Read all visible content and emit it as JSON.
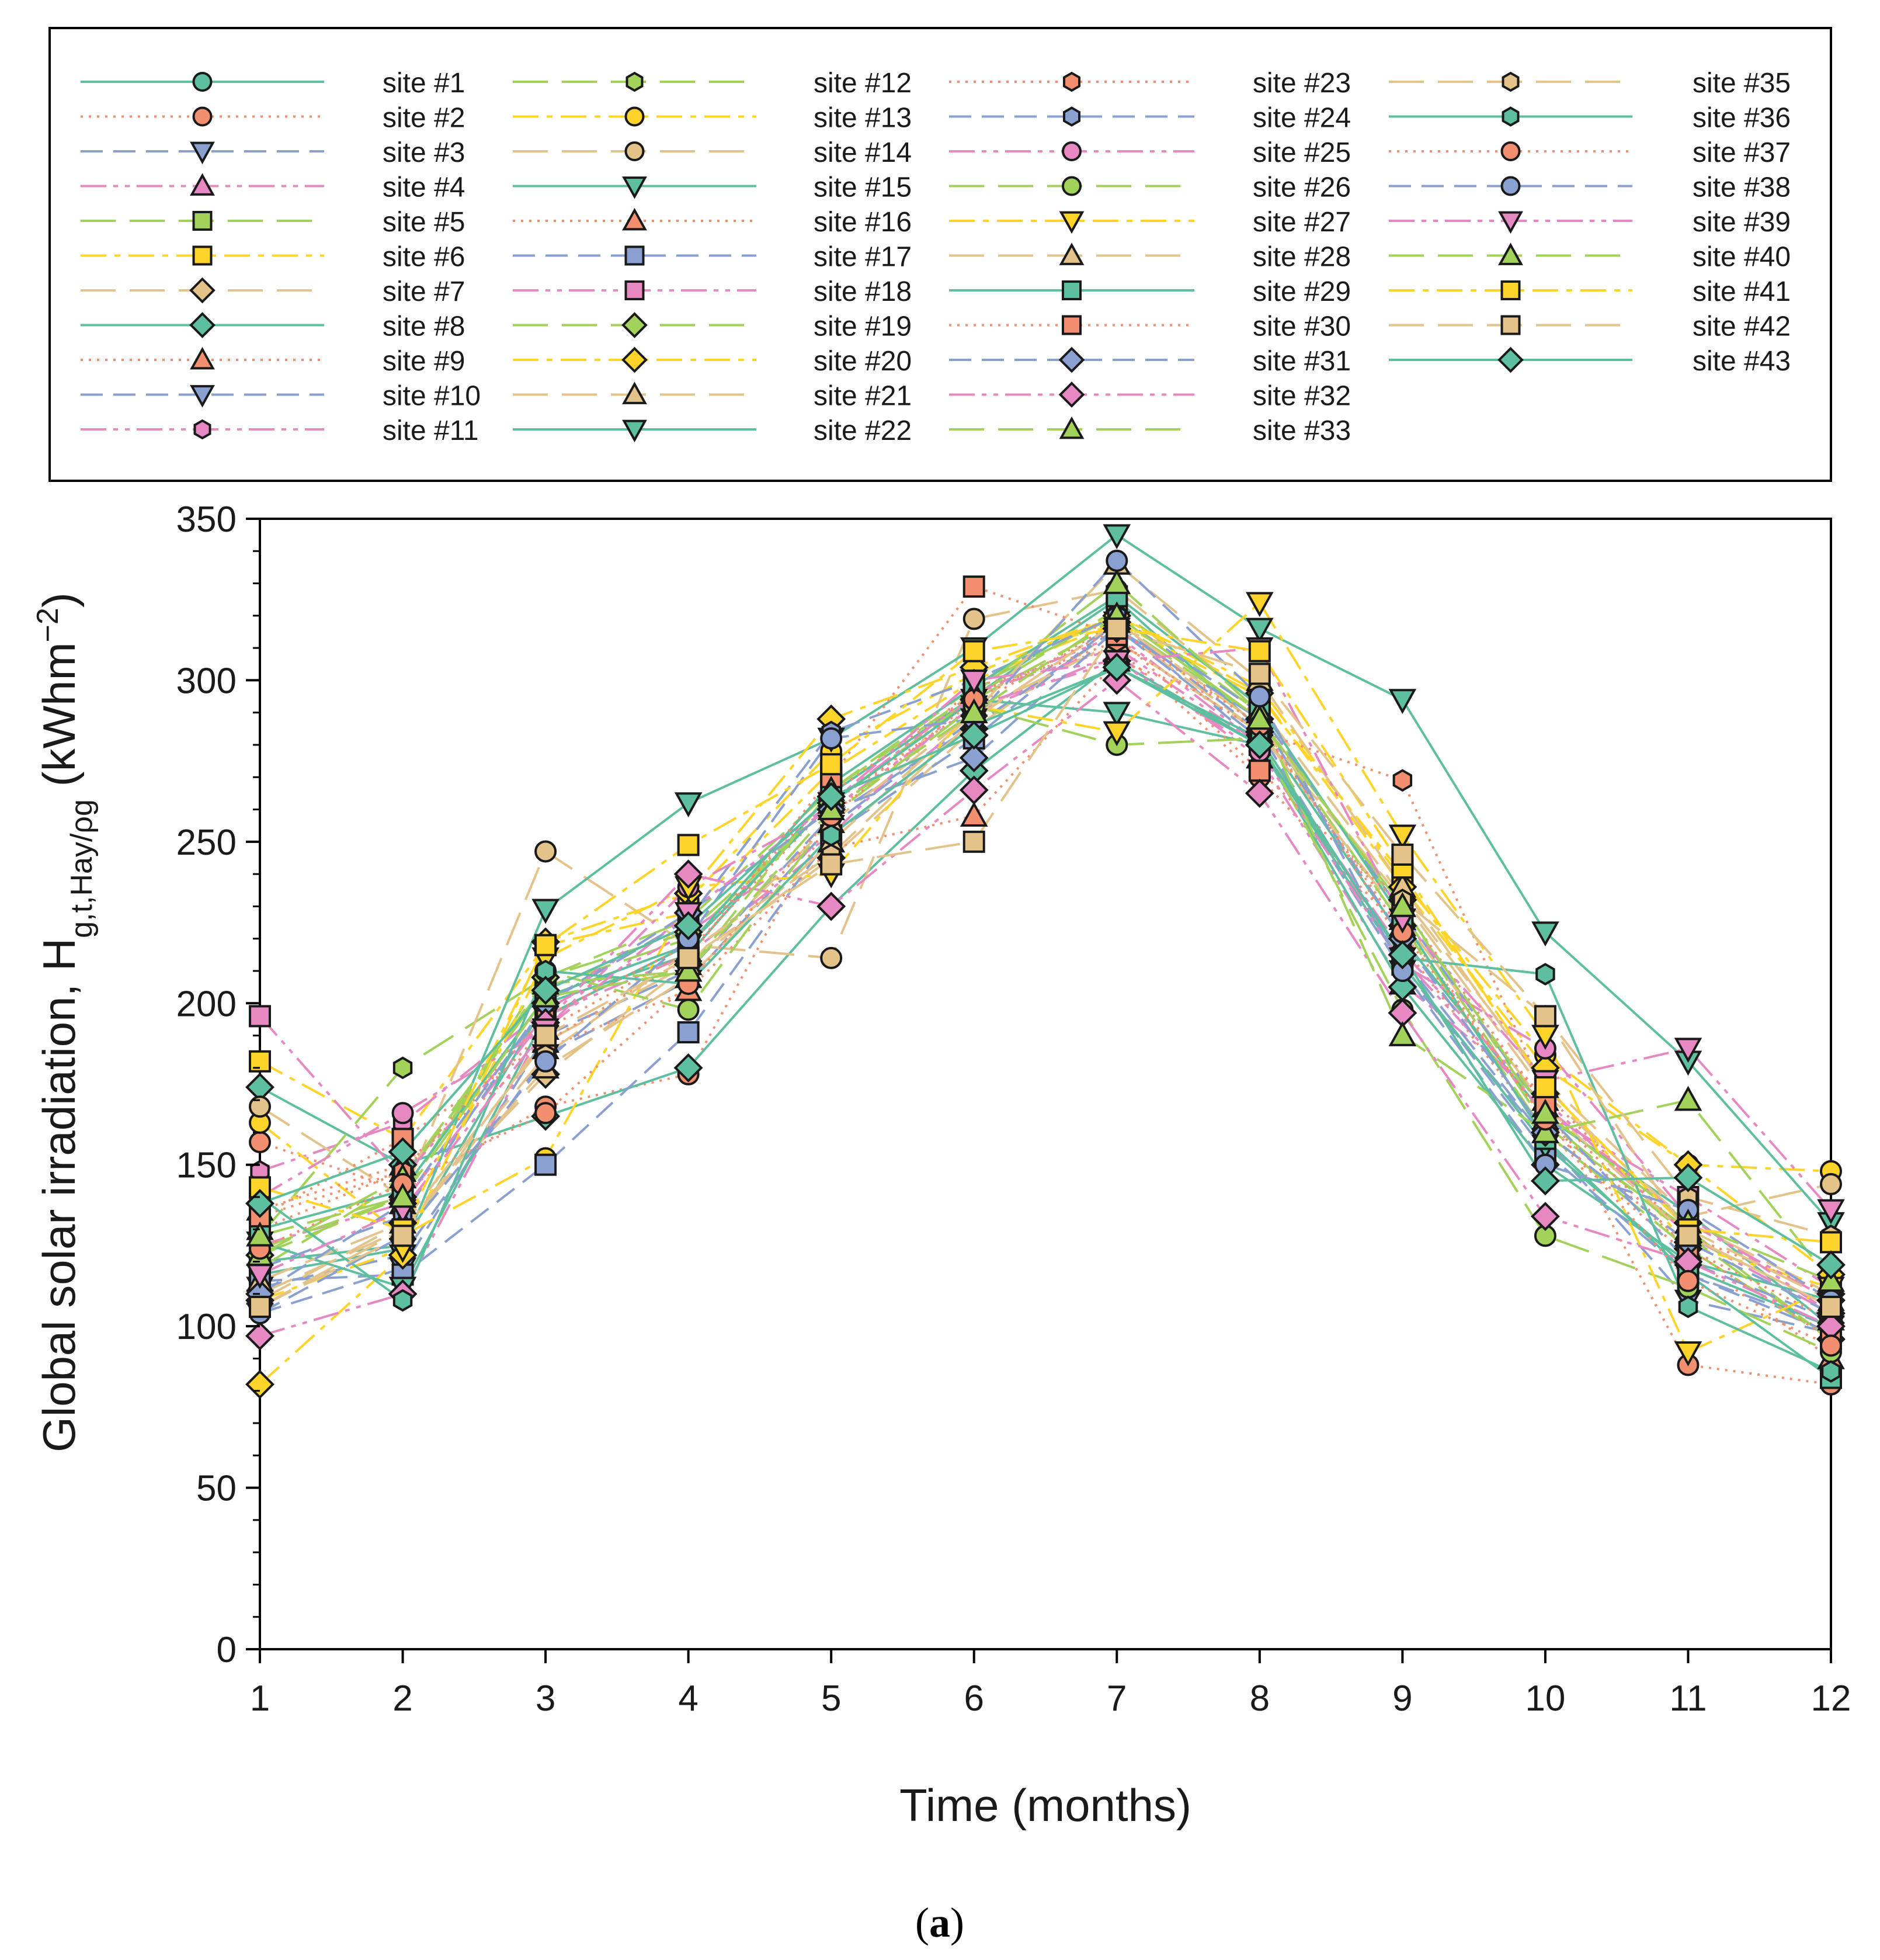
{
  "chart_data": {
    "type": "line",
    "ylabel_main": "Global solar irradiation, H",
    "ylabel_sub": "g,t,Hay/ρg",
    "ylabel_unit_open": " (kWhm",
    "ylabel_unit_sup": "−2",
    "ylabel_unit_close": ")",
    "xlabel": "Time (months)",
    "caption_open": "(",
    "caption_letter": "a",
    "caption_close": ")",
    "x": [
      1,
      2,
      3,
      4,
      5,
      6,
      7,
      8,
      9,
      10,
      11,
      12
    ],
    "x_tick_labels": [
      "1",
      "2",
      "3",
      "4",
      "5",
      "6",
      "7",
      "8",
      "9",
      "10",
      "11",
      "12"
    ],
    "y_ticks": [
      0,
      50,
      100,
      150,
      200,
      250,
      300,
      350
    ],
    "y_tick_labels": [
      "0",
      "50",
      "100",
      "150",
      "200",
      "250",
      "300",
      "350"
    ],
    "ylim": [
      0,
      350
    ],
    "xlim": [
      1,
      12
    ],
    "grid": false,
    "legend_position": "top",
    "series": [
      {
        "name": "site #1",
        "line": "#5ebfa0",
        "fill": "#5ebfa0",
        "dash": "solid",
        "marker": "circle",
        "values": [
          120,
          125,
          200,
          215,
          265,
          295,
          325,
          285,
          220,
          165,
          135,
          100
        ]
      },
      {
        "name": "site #2",
        "line": "#f28f6e",
        "fill": "#f28f6e",
        "dash": "dot",
        "marker": "circle",
        "values": [
          157,
          142,
          168,
          178,
          258,
          298,
          310,
          270,
          222,
          170,
          88,
          82
        ]
      },
      {
        "name": "site #3",
        "line": "#8aa0d0",
        "fill": "#8aa0d0",
        "dash": "dash",
        "marker": "tri-down",
        "values": [
          112,
          122,
          184,
          207,
          255,
          288,
          318,
          280,
          210,
          158,
          108,
          98
        ]
      },
      {
        "name": "site #4",
        "line": "#e689c3",
        "fill": "#e689c3",
        "dash": "dashdot2",
        "marker": "tri-up",
        "values": [
          125,
          138,
          196,
          215,
          250,
          290,
          308,
          276,
          206,
          170,
          128,
          104
        ]
      },
      {
        "name": "site #5",
        "line": "#a3d25a",
        "fill": "#a3d25a",
        "dash": "longdash",
        "marker": "square",
        "values": [
          118,
          145,
          205,
          220,
          262,
          295,
          322,
          290,
          228,
          162,
          130,
          96
        ]
      },
      {
        "name": "site #6",
        "line": "#ffd42a",
        "fill": "#ffd42a",
        "dash": "dashdot",
        "marker": "square",
        "values": [
          182,
          158,
          218,
          228,
          272,
          300,
          318,
          295,
          240,
          175,
          125,
          112
        ]
      },
      {
        "name": "site #7",
        "line": "#e3c38a",
        "fill": "#e3c38a",
        "dash": "longdash",
        "marker": "diamond",
        "values": [
          108,
          132,
          178,
          212,
          245,
          285,
          316,
          284,
          232,
          172,
          132,
          110
        ]
      },
      {
        "name": "site #8",
        "line": "#5ebfa0",
        "fill": "#5ebfa0",
        "dash": "solid",
        "marker": "diamond",
        "values": [
          174,
          150,
          165,
          180,
          230,
          272,
          306,
          280,
          205,
          150,
          120,
          108
        ]
      },
      {
        "name": "site #9",
        "line": "#f28f6e",
        "fill": "#f28f6e",
        "dash": "dot",
        "marker": "tri-up",
        "values": [
          130,
          148,
          192,
          216,
          262,
          292,
          318,
          286,
          224,
          164,
          124,
          102
        ]
      },
      {
        "name": "site #10",
        "line": "#8aa0d0",
        "fill": "#8aa0d0",
        "dash": "dash",
        "marker": "tri-down",
        "values": [
          104,
          118,
          190,
          210,
          258,
          286,
          316,
          282,
          214,
          158,
          116,
          100
        ]
      },
      {
        "name": "site #11",
        "line": "#e689c3",
        "fill": "#e689c3",
        "dash": "dashdot2",
        "marker": "hexagon",
        "values": [
          148,
          163,
          198,
          222,
          252,
          296,
          314,
          280,
          216,
          168,
          132,
          108
        ]
      },
      {
        "name": "site #12",
        "line": "#a3d25a",
        "fill": "#a3d25a",
        "dash": "longdash",
        "marker": "hexagon",
        "values": [
          128,
          180,
          208,
          226,
          266,
          298,
          320,
          288,
          230,
          164,
          128,
          96
        ]
      },
      {
        "name": "site #13",
        "line": "#ffd42a",
        "fill": "#ffd42a",
        "dash": "dashdot",
        "marker": "circle",
        "values": [
          163,
          128,
          152,
          232,
          278,
          302,
          320,
          298,
          238,
          184,
          150,
          148
        ]
      },
      {
        "name": "site #14",
        "line": "#e3c38a",
        "fill": "#e3c38a",
        "dash": "longdash",
        "marker": "circle",
        "values": [
          168,
          140,
          247,
          218,
          214,
          319,
          328,
          292,
          233,
          176,
          134,
          144
        ]
      },
      {
        "name": "site #15",
        "line": "#5ebfa0",
        "fill": "#5ebfa0",
        "dash": "solid",
        "marker": "tri-down",
        "values": [
          116,
          124,
          229,
          262,
          282,
          310,
          345,
          316,
          294,
          222,
          182,
          132
        ]
      },
      {
        "name": "site #16",
        "line": "#f28f6e",
        "fill": "#f28f6e",
        "dash": "dot",
        "marker": "tri-up",
        "values": [
          136,
          150,
          186,
          204,
          248,
          258,
          306,
          290,
          218,
          160,
          122,
          90
        ]
      },
      {
        "name": "site #17",
        "line": "#8aa0d0",
        "fill": "#8aa0d0",
        "dash": "dash",
        "marker": "square",
        "values": [
          114,
          116,
          150,
          191,
          252,
          282,
          318,
          284,
          212,
          154,
          116,
          98
        ]
      },
      {
        "name": "site #18",
        "line": "#e689c3",
        "fill": "#e689c3",
        "dash": "dashdot2",
        "marker": "square",
        "values": [
          196,
          146,
          196,
          218,
          262,
          296,
          310,
          280,
          214,
          166,
          140,
          112
        ]
      },
      {
        "name": "site #19",
        "line": "#a3d25a",
        "fill": "#a3d25a",
        "dash": "longdash",
        "marker": "diamond",
        "values": [
          122,
          140,
          208,
          222,
          262,
          294,
          318,
          288,
          224,
          160,
          124,
          96
        ]
      },
      {
        "name": "site #20",
        "line": "#ffd42a",
        "fill": "#ffd42a",
        "dash": "dashdot",
        "marker": "diamond",
        "values": [
          82,
          122,
          219,
          234,
          288,
          304,
          320,
          296,
          236,
          180,
          150,
          116
        ]
      },
      {
        "name": "site #21",
        "line": "#e3c38a",
        "fill": "#e3c38a",
        "dash": "longdash",
        "marker": "tri-up",
        "values": [
          110,
          130,
          180,
          208,
          250,
          290,
          312,
          284,
          226,
          168,
          128,
          106
        ]
      },
      {
        "name": "site #22",
        "line": "#5ebfa0",
        "fill": "#5ebfa0",
        "dash": "solid",
        "marker": "tri-down",
        "values": [
          126,
          112,
          196,
          218,
          262,
          294,
          290,
          280,
          212,
          156,
          118,
          100
        ]
      },
      {
        "name": "site #23",
        "line": "#f28f6e",
        "fill": "#f28f6e",
        "dash": "dot",
        "marker": "hexagon",
        "values": [
          134,
          148,
          196,
          218,
          265,
          296,
          312,
          284,
          269,
          172,
          128,
          110
        ]
      },
      {
        "name": "site #24",
        "line": "#8aa0d0",
        "fill": "#8aa0d0",
        "dash": "dash",
        "marker": "hexagon",
        "values": [
          118,
          134,
          200,
          226,
          284,
          300,
          320,
          290,
          228,
          166,
          120,
          102
        ]
      },
      {
        "name": "site #25",
        "line": "#e689c3",
        "fill": "#e689c3",
        "dash": "dashdot2",
        "marker": "circle",
        "values": [
          140,
          166,
          192,
          236,
          260,
          292,
          306,
          278,
          212,
          186,
          134,
          104
        ]
      },
      {
        "name": "site #26",
        "line": "#a3d25a",
        "fill": "#a3d25a",
        "dash": "longdash",
        "marker": "circle",
        "values": [
          124,
          140,
          210,
          198,
          258,
          292,
          280,
          282,
          198,
          128,
          112,
          92
        ]
      },
      {
        "name": "site #27",
        "line": "#ffd42a",
        "fill": "#ffd42a",
        "dash": "dashdot",
        "marker": "tri-down",
        "values": [
          108,
          124,
          214,
          236,
          240,
          292,
          284,
          324,
          252,
          190,
          92,
          112
        ]
      },
      {
        "name": "site #28",
        "line": "#e3c38a",
        "fill": "#e3c38a",
        "dash": "longdash",
        "marker": "tri-up",
        "values": [
          114,
          132,
          188,
          212,
          256,
          290,
          336,
          300,
          236,
          174,
          130,
          108
        ]
      },
      {
        "name": "site #29",
        "line": "#5ebfa0",
        "fill": "#5ebfa0",
        "dash": "solid",
        "marker": "square",
        "values": [
          130,
          142,
          202,
          218,
          268,
          298,
          326,
          292,
          226,
          158,
          116,
          84
        ]
      },
      {
        "name": "site #30",
        "line": "#f28f6e",
        "fill": "#f28f6e",
        "dash": "dot",
        "marker": "square",
        "values": [
          134,
          158,
          188,
          214,
          270,
          329,
          314,
          272,
          230,
          168,
          124,
          96
        ]
      },
      {
        "name": "site #31",
        "line": "#8aa0d0",
        "fill": "#8aa0d0",
        "dash": "dash",
        "marker": "diamond",
        "values": [
          110,
          138,
          200,
          228,
          260,
          276,
          316,
          288,
          220,
          160,
          126,
          104
        ]
      },
      {
        "name": "site #32",
        "line": "#e689c3",
        "fill": "#e689c3",
        "dash": "dashdot2",
        "marker": "diamond",
        "values": [
          97,
          110,
          194,
          240,
          230,
          266,
          300,
          265,
          197,
          134,
          120,
          100
        ]
      },
      {
        "name": "site #33",
        "line": "#a3d25a",
        "fill": "#a3d25a",
        "dash": "longdash",
        "marker": "tri-up",
        "values": [
          122,
          146,
          206,
          210,
          266,
          296,
          330,
          290,
          190,
          160,
          170,
          114
        ]
      },
      {
        "name": "site #35",
        "line": "#e3c38a",
        "fill": "#e3c38a",
        "dash": "longdash",
        "marker": "hexagon",
        "values": [
          106,
          130,
          184,
          216,
          246,
          288,
          318,
          286,
          232,
          196,
          140,
          128
        ]
      },
      {
        "name": "site #36",
        "line": "#5ebfa0",
        "fill": "#5ebfa0",
        "dash": "solid",
        "marker": "hexagon",
        "values": [
          140,
          108,
          210,
          206,
          252,
          286,
          304,
          282,
          214,
          209,
          106,
          86
        ]
      },
      {
        "name": "site #37",
        "line": "#f28f6e",
        "fill": "#f28f6e",
        "dash": "dot",
        "marker": "circle",
        "values": [
          124,
          144,
          166,
          206,
          258,
          294,
          316,
          286,
          222,
          164,
          114,
          94
        ]
      },
      {
        "name": "site #38",
        "line": "#8aa0d0",
        "fill": "#8aa0d0",
        "dash": "dash",
        "marker": "circle",
        "values": [
          104,
          128,
          182,
          220,
          282,
          288,
          337,
          295,
          210,
          150,
          136,
          108
        ]
      },
      {
        "name": "site #39",
        "line": "#e689c3",
        "fill": "#e689c3",
        "dash": "dashdot2",
        "marker": "tri-down",
        "values": [
          116,
          136,
          192,
          228,
          262,
          300,
          306,
          310,
          226,
          176,
          186,
          136
        ]
      },
      {
        "name": "site #40",
        "line": "#a3d25a",
        "fill": "#a3d25a",
        "dash": "longdash",
        "marker": "tri-up",
        "values": [
          128,
          140,
          202,
          210,
          260,
          290,
          320,
          288,
          230,
          166,
          132,
          114
        ]
      },
      {
        "name": "site #41",
        "line": "#ffd42a",
        "fill": "#ffd42a",
        "dash": "dashdot",
        "marker": "square",
        "values": [
          143,
          130,
          218,
          249,
          274,
          309,
          316,
          309,
          242,
          174,
          130,
          126
        ]
      },
      {
        "name": "site #42",
        "line": "#e3c38a",
        "fill": "#e3c38a",
        "dash": "longdash",
        "marker": "square",
        "values": [
          106,
          128,
          190,
          214,
          243,
          250,
          316,
          302,
          246,
          196,
          128,
          106
        ]
      },
      {
        "name": "site #43",
        "line": "#5ebfa0",
        "fill": "#5ebfa0",
        "dash": "solid",
        "marker": "diamond",
        "values": [
          138,
          154,
          204,
          224,
          264,
          283,
          304,
          280,
          215,
          145,
          146,
          119
        ]
      }
    ]
  }
}
